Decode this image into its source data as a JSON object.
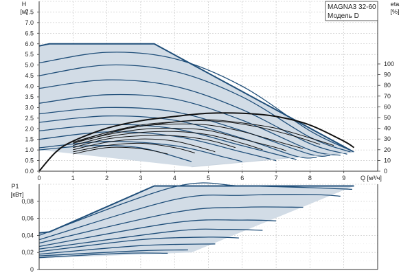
{
  "chart_data": [
    {
      "type": "line",
      "title": "MAGNA3 32-60",
      "subtitle": "Модель D",
      "ylabel_line1": "H",
      "ylabel_line2": "[м]",
      "xlabel": "Q [м³/ч]",
      "ylabel_right_line1": "eta",
      "ylabel_right_line2": "[%]",
      "xlim": [
        0,
        10
      ],
      "ylim": [
        0,
        8
      ],
      "y2lim": [
        0,
        100
      ],
      "xticks": [
        "0",
        "1",
        "2",
        "3",
        "4",
        "5",
        "6",
        "7",
        "8",
        "9"
      ],
      "yticks": [
        "0.0",
        "0.5",
        "1.0",
        "1.5",
        "2.0",
        "2.5",
        "3.0",
        "3.5",
        "4.0",
        "4.5",
        "5.0",
        "5.5",
        "6.0",
        "6.5",
        "7.0",
        "7.5"
      ],
      "y2ticks": [
        "0",
        "10",
        "20",
        "30",
        "40",
        "50",
        "60",
        "70",
        "80",
        "90",
        "100"
      ],
      "grid": true,
      "area_color": "#d2dce6",
      "curve_color": "#1f4e79",
      "eff_color": "#111111",
      "area_polygon": [
        [
          0,
          5.9
        ],
        [
          0.3,
          6.0
        ],
        [
          3.4,
          6.0
        ],
        [
          9.3,
          0.9
        ],
        [
          4.5,
          0.2
        ],
        [
          0,
          1.0
        ]
      ],
      "head_series": [
        {
          "values": [
            [
              0,
              5.9
            ],
            [
              0.3,
              6.0
            ],
            [
              3.4,
              6.0
            ],
            [
              9.3,
              0.9
            ]
          ]
        },
        {
          "values": [
            [
              0,
              5.1
            ],
            [
              2.0,
              5.6
            ],
            [
              4.0,
              5.3
            ],
            [
              6.0,
              4.0
            ],
            [
              8.0,
              1.9
            ],
            [
              9.25,
              0.95
            ]
          ]
        },
        {
          "values": [
            [
              0,
              4.5
            ],
            [
              2.0,
              5.0
            ],
            [
              4.0,
              4.7
            ],
            [
              6.0,
              3.5
            ],
            [
              8.0,
              1.6
            ],
            [
              9.2,
              0.9
            ]
          ]
        },
        {
          "values": [
            [
              0,
              3.9
            ],
            [
              2.0,
              4.3
            ],
            [
              4.0,
              4.0
            ],
            [
              6.0,
              2.9
            ],
            [
              8.0,
              1.3
            ],
            [
              9.1,
              0.8
            ]
          ]
        },
        {
          "values": [
            [
              0,
              3.2
            ],
            [
              2.0,
              3.6
            ],
            [
              4.0,
              3.4
            ],
            [
              6.0,
              2.4
            ],
            [
              8.0,
              1.0
            ],
            [
              8.9,
              0.75
            ]
          ]
        },
        {
          "values": [
            [
              0,
              2.7
            ],
            [
              2.0,
              3.0
            ],
            [
              4.0,
              2.8
            ],
            [
              6.0,
              1.9
            ],
            [
              8.0,
              0.8
            ],
            [
              8.6,
              0.75
            ]
          ]
        },
        {
          "values": [
            [
              0,
              2.3
            ],
            [
              2.0,
              2.6
            ],
            [
              4.0,
              2.4
            ],
            [
              6.0,
              1.55
            ],
            [
              7.6,
              0.7
            ],
            [
              8.2,
              0.65
            ]
          ]
        },
        {
          "values": [
            [
              0,
              1.9
            ],
            [
              2.0,
              2.2
            ],
            [
              4.0,
              2.0
            ],
            [
              6.0,
              1.2
            ],
            [
              7.6,
              0.55
            ]
          ]
        },
        {
          "values": [
            [
              0,
              1.5
            ],
            [
              2.0,
              1.85
            ],
            [
              4.0,
              1.65
            ],
            [
              6.0,
              0.9
            ],
            [
              7.0,
              0.5
            ]
          ]
        },
        {
          "values": [
            [
              0,
              1.1
            ],
            [
              2.0,
              1.4
            ],
            [
              4.0,
              1.2
            ],
            [
              5.5,
              0.65
            ],
            [
              6.0,
              0.45
            ]
          ]
        },
        {
          "values": [
            [
              0,
              1.0
            ],
            [
              1.5,
              1.2
            ],
            [
              3.0,
              1.1
            ],
            [
              4.5,
              0.45
            ]
          ]
        }
      ],
      "eff_series": [
        {
          "values": [
            [
              0,
              0
            ],
            [
              0.5,
              18
            ],
            [
              1,
              28
            ],
            [
              2,
              40
            ],
            [
              3,
              47
            ],
            [
              4,
              51
            ],
            [
              5,
              54
            ],
            [
              6,
              54
            ],
            [
              7,
              51
            ],
            [
              8,
              43
            ],
            [
              9,
              28
            ],
            [
              9.3,
              22
            ]
          ]
        },
        {
          "values": [
            [
              1,
              26
            ],
            [
              2,
              36
            ],
            [
              3,
              43
            ],
            [
              4,
              46
            ],
            [
              5,
              48
            ],
            [
              6,
              45
            ],
            [
              7,
              40
            ],
            [
              8,
              31
            ],
            [
              8.7,
              24
            ]
          ]
        },
        {
          "values": [
            [
              1.5,
              30
            ],
            [
              2.5,
              39
            ],
            [
              3.5,
              44
            ],
            [
              4.5,
              47
            ],
            [
              5.5,
              46
            ],
            [
              6.5,
              41
            ],
            [
              7.5,
              33
            ],
            [
              8.3,
              25
            ]
          ]
        },
        {
          "values": [
            [
              1,
              27
            ],
            [
              2,
              36
            ],
            [
              3,
              42
            ],
            [
              4,
              44
            ],
            [
              5,
              43
            ],
            [
              6,
              37
            ],
            [
              7,
              28
            ],
            [
              7.8,
              21
            ]
          ]
        },
        {
          "values": [
            [
              1,
              26
            ],
            [
              2,
              34
            ],
            [
              3,
              39
            ],
            [
              4,
              40
            ],
            [
              5,
              38
            ],
            [
              6,
              30
            ],
            [
              7,
              22
            ],
            [
              7.3,
              19
            ]
          ]
        },
        {
          "values": [
            [
              1,
              24
            ],
            [
              2,
              32
            ],
            [
              3,
              36
            ],
            [
              4,
              37
            ],
            [
              5,
              34
            ],
            [
              6,
              26
            ],
            [
              6.6,
              20
            ]
          ]
        },
        {
          "values": [
            [
              1,
              22
            ],
            [
              2,
              30
            ],
            [
              3,
              33
            ],
            [
              4,
              33
            ],
            [
              5,
              29
            ],
            [
              5.8,
              22
            ]
          ]
        },
        {
          "values": [
            [
              1,
              20
            ],
            [
              2,
              27
            ],
            [
              3,
              30
            ],
            [
              4,
              28
            ],
            [
              5,
              20
            ],
            [
              5.2,
              18
            ]
          ]
        },
        {
          "values": [
            [
              1,
              18
            ],
            [
              2,
              24
            ],
            [
              3,
              26
            ],
            [
              4,
              22
            ],
            [
              4.6,
              17
            ]
          ]
        },
        {
          "values": [
            [
              1,
              16
            ],
            [
              2,
              22
            ],
            [
              3,
              21
            ],
            [
              3.8,
              16
            ]
          ]
        }
      ]
    },
    {
      "type": "line",
      "ylabel_line1": "P1",
      "ylabel_line2": "[кВт]",
      "xlim": [
        0,
        10
      ],
      "ylim": [
        0,
        0.1
      ],
      "yticks": [
        "0",
        "0,02",
        "0,04",
        "0,06",
        "0,08"
      ],
      "grid": true,
      "area_polygon": [
        [
          0,
          0.043
        ],
        [
          0.3,
          0.044
        ],
        [
          3.4,
          0.098
        ],
        [
          9.3,
          0.098
        ],
        [
          4.5,
          0.02
        ],
        [
          0,
          0.013
        ]
      ],
      "power_series": [
        {
          "values": [
            [
              0,
              0.043
            ],
            [
              0.3,
              0.044
            ],
            [
              3.4,
              0.098
            ],
            [
              9.3,
              0.098
            ]
          ]
        },
        {
          "values": [
            [
              0,
              0.04
            ],
            [
              4.0,
              0.097
            ],
            [
              6.0,
              0.098
            ],
            [
              8.0,
              0.096
            ],
            [
              9.25,
              0.094
            ]
          ]
        },
        {
          "values": [
            [
              0,
              0.035
            ],
            [
              4.0,
              0.082
            ],
            [
              6.0,
              0.087
            ],
            [
              8.0,
              0.088
            ],
            [
              8.9,
              0.086
            ]
          ]
        },
        {
          "values": [
            [
              0,
              0.031
            ],
            [
              4.0,
              0.067
            ],
            [
              6.0,
              0.073
            ],
            [
              7.8,
              0.073
            ]
          ]
        },
        {
          "values": [
            [
              0,
              0.027
            ],
            [
              4.0,
              0.055
            ],
            [
              6.0,
              0.058
            ],
            [
              7.0,
              0.057
            ]
          ]
        },
        {
          "values": [
            [
              0,
              0.024
            ],
            [
              4.0,
              0.045
            ],
            [
              5.5,
              0.047
            ],
            [
              6.6,
              0.046
            ]
          ]
        },
        {
          "values": [
            [
              0,
              0.021
            ],
            [
              3.0,
              0.035
            ],
            [
              5.0,
              0.038
            ],
            [
              5.9,
              0.037
            ]
          ]
        },
        {
          "values": [
            [
              0,
              0.018
            ],
            [
              3.0,
              0.028
            ],
            [
              5.2,
              0.03
            ]
          ]
        },
        {
          "values": [
            [
              0,
              0.016
            ],
            [
              3.0,
              0.022
            ],
            [
              4.4,
              0.023
            ]
          ]
        },
        {
          "values": [
            [
              0,
              0.014
            ],
            [
              2.5,
              0.019
            ],
            [
              3.8,
              0.019
            ]
          ]
        }
      ]
    }
  ]
}
